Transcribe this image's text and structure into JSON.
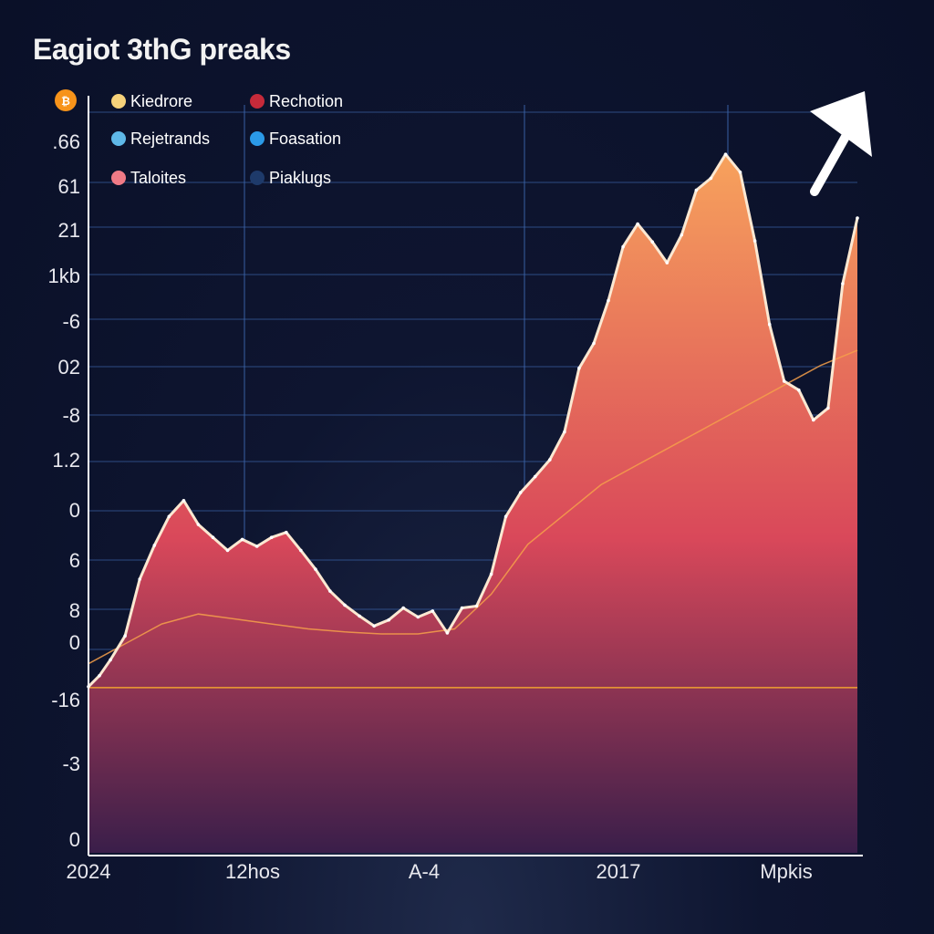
{
  "title": "Eagiot 3thG preaks",
  "coin_icon": "bitcoin-icon",
  "colors": {
    "background": "#0e1530",
    "grid": "#3b63a8",
    "area_top": "#f7a25c",
    "area_mid": "#d9485a",
    "area_bottom": "#3a1e4a",
    "price_line": "#fbe8d2",
    "moving_average": "#f6a04a",
    "baseline": "#f0a030",
    "arrow": "#ffffff"
  },
  "chart_data": {
    "type": "area",
    "title": "Eagiot 3thG preaks",
    "y_tick_labels": [
      ".66",
      "61",
      "21",
      "1kb",
      "-6",
      "02",
      "-8",
      "1.2",
      "0",
      "6",
      "8",
      "0",
      "-16",
      "-3",
      "0"
    ],
    "x_tick_labels": [
      "2024",
      "12hos",
      "A-4",
      "2017",
      "Mpkis"
    ],
    "legend": [
      {
        "label": "Kiedrore",
        "color": "#f6d27a"
      },
      {
        "label": "Rechotion",
        "color": "#c62a3a"
      },
      {
        "label": "Rejetrands",
        "color": "#5fb8e8"
      },
      {
        "label": "Foasation",
        "color": "#2b9ae8"
      },
      {
        "label": "Taloites",
        "color": "#f07a86"
      },
      {
        "label": "Piaklugs",
        "color": "#1e3a6a"
      }
    ],
    "legend_position": "top-left",
    "grid": true,
    "trend_arrow": true,
    "series": [
      {
        "x": [
          0,
          1.5,
          3,
          5,
          7,
          9,
          11,
          13,
          15,
          17,
          19,
          21,
          23,
          25,
          27,
          29,
          31,
          33,
          35,
          37,
          39,
          41,
          43,
          45,
          47,
          49,
          51,
          53,
          55,
          57,
          59,
          61,
          63,
          65,
          67,
          69,
          71,
          73,
          75,
          77,
          79,
          81,
          83,
          85,
          87,
          89,
          91,
          93,
          95,
          97,
          99,
          101,
          103,
          105
        ],
        "values": [
          -15.3,
          -14.2,
          -12.6,
          -10.2,
          -4.5,
          -1.1,
          1.8,
          3.4,
          1.0,
          -0.3,
          -1.6,
          -0.5,
          -1.2,
          -0.3,
          0.2,
          -1.6,
          -3.5,
          -5.7,
          -7.1,
          -8.2,
          -9.2,
          -8.6,
          -7.4,
          -8.3,
          -7.7,
          -9.9,
          -7.4,
          -7.2,
          -4.0,
          1.8,
          4.2,
          5.8,
          7.5,
          10.3,
          16.7,
          19.2,
          23.5,
          28.9,
          31.2,
          29.4,
          27.3,
          30.1,
          34.6,
          35.8,
          38.2,
          36.4,
          29.5,
          21.1,
          15.4,
          14.5,
          11.5,
          12.7,
          25.2,
          31.8
        ],
        "name": ""
      },
      {
        "x": [
          0,
          5,
          10,
          15,
          20,
          25,
          30,
          35,
          40,
          45,
          50,
          55,
          60,
          65,
          70,
          75,
          80,
          85,
          90,
          95,
          100,
          105
        ],
        "values": [
          -13.0,
          -11.0,
          -9.0,
          -8.0,
          -8.5,
          -9.0,
          -9.5,
          -9.8,
          -10.0,
          -10.0,
          -9.5,
          -6.0,
          -1.0,
          2.0,
          5.0,
          7.0,
          9.0,
          11.0,
          13.0,
          15.0,
          17.0,
          18.5
        ],
        "name": ""
      }
    ],
    "baseline_value": -15.4,
    "ylim": [
      -32,
      45
    ],
    "xlim": [
      0,
      105
    ]
  }
}
